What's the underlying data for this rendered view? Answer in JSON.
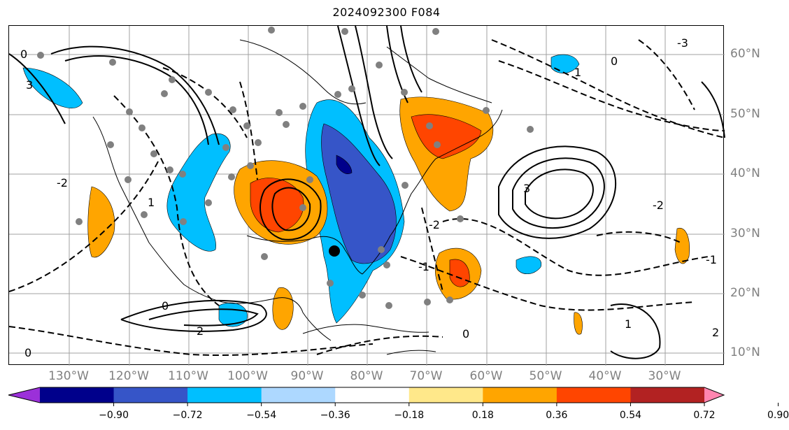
{
  "title": "2024092300 F084",
  "longitude_labels": [
    "130°W",
    "120°W",
    "110°W",
    "100°W",
    "90°W",
    "80°W",
    "70°W",
    "60°W",
    "50°W",
    "40°W",
    "30°W"
  ],
  "latitude_labels": [
    "60°N",
    "50°N",
    "40°N",
    "30°N",
    "20°N",
    "10°N"
  ],
  "colorbar": {
    "ticks": [
      "−0.90",
      "−0.72",
      "−0.54",
      "−0.36",
      "−0.18",
      "0.18",
      "0.36",
      "0.54",
      "0.72",
      "0.90"
    ],
    "colors": [
      "#9b30d9",
      "#00008b",
      "#3655c8",
      "#00bfff",
      "#add8ff",
      "#ffffff",
      "#ffe88a",
      "#ffa500",
      "#ff4500",
      "#b22222",
      "#ff85b0"
    ]
  },
  "contour_labels": [
    "0",
    "1",
    "2",
    "3",
    "-1",
    "-2",
    "-3"
  ],
  "colors": {
    "line": "#000000",
    "gridline": "#a0a0a0",
    "station": "#808080",
    "marker": "#000000"
  }
}
